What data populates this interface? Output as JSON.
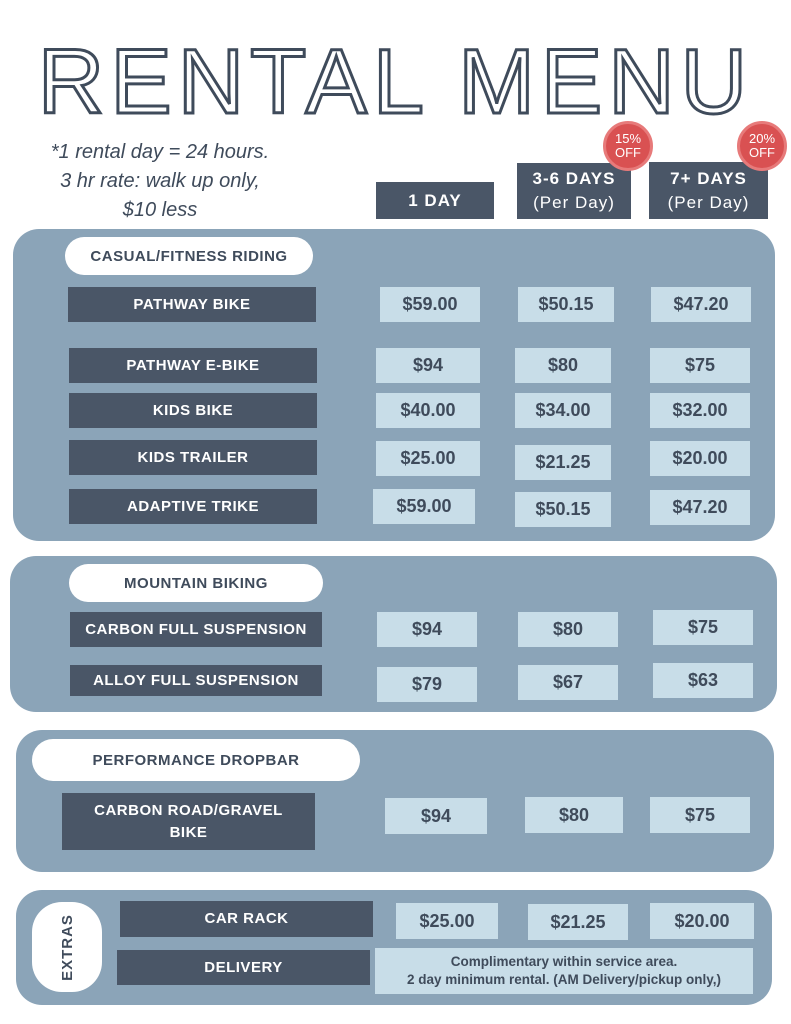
{
  "title": "RENTAL MENU",
  "note": {
    "line1": "*1 rental day = 24 hours.",
    "line2": "3 hr rate: walk up only,",
    "line3": "$10 less"
  },
  "columns": {
    "day1": "1 DAY",
    "days3to6": "3-6 DAYS",
    "days3to6_sub": "(Per Day)",
    "days7plus": "7+ DAYS",
    "days7plus_sub": "(Per Day)"
  },
  "badges": {
    "b15": {
      "pct": "15%",
      "off": "OFF"
    },
    "b20": {
      "pct": "20%",
      "off": "OFF"
    }
  },
  "colors": {
    "dark": "#4a5667",
    "panel": "#8ba4b8",
    "cell": "#c8dde8",
    "badge": "#d95152"
  },
  "casual": {
    "title": "CASUAL/FITNESS  RIDING",
    "rows": [
      {
        "name": "PATHWAY BIKE",
        "p1": "$59.00",
        "p2": "$50.15",
        "p3": "$47.20"
      },
      {
        "name": "PATHWAY E-BIKE",
        "p1": "$94",
        "p2": "$80",
        "p3": "$75"
      },
      {
        "name": "KIDS BIKE",
        "p1": "$40.00",
        "p2": "$34.00",
        "p3": "$32.00"
      },
      {
        "name": "KIDS TRAILER",
        "p1": "$25.00",
        "p2": "$21.25",
        "p3": "$20.00"
      },
      {
        "name": "ADAPTIVE TRIKE",
        "p1": "$59.00",
        "p2": "$50.15",
        "p3": "$47.20"
      }
    ]
  },
  "mountain": {
    "title": "MOUNTAIN BIKING",
    "rows": [
      {
        "name": "CARBON FULL SUSPENSION",
        "p1": "$94",
        "p2": "$80",
        "p3": "$75"
      },
      {
        "name": "ALLOY FULL SUSPENSION",
        "p1": "$79",
        "p2": "$67",
        "p3": "$63"
      }
    ]
  },
  "performance": {
    "title": "PERFORMANCE DROPBAR",
    "rows": [
      {
        "name_line1": "CARBON ROAD/GRAVEL",
        "name_line2": "BIKE",
        "p1": "$94",
        "p2": "$80",
        "p3": "$75"
      }
    ]
  },
  "extras": {
    "title": "EXTRAS",
    "car_rack": {
      "name": "CAR RACK",
      "p1": "$25.00",
      "p2": "$21.25",
      "p3": "$20.00"
    },
    "delivery": {
      "name": "DELIVERY",
      "note_line1": "Complimentary within service area.",
      "note_line2": "2 day minimum rental. (AM Delivery/pickup only,)"
    }
  }
}
